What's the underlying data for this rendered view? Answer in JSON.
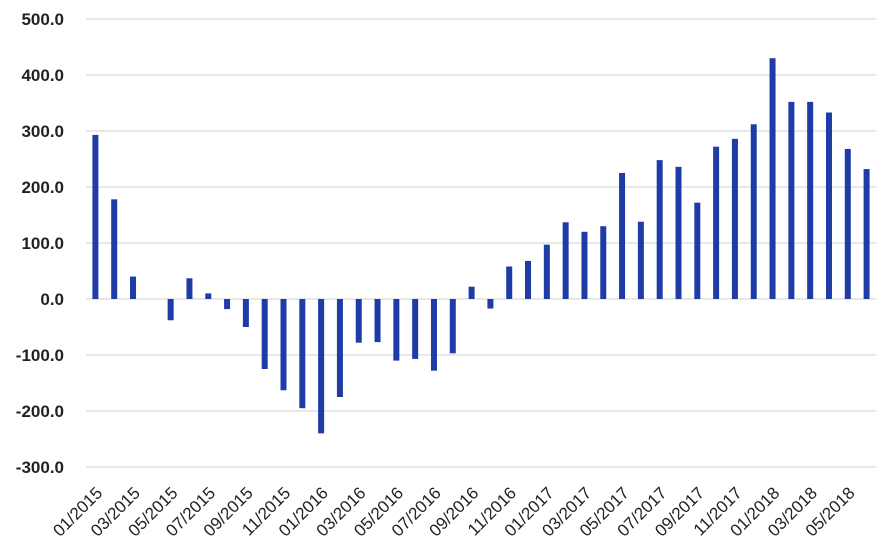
{
  "chart_data": {
    "type": "bar",
    "title": "",
    "xlabel": "",
    "ylabel": "",
    "ylim": [
      -300,
      500
    ],
    "yticks": [
      "-300.0",
      "-200.0",
      "-100.0",
      "0.0",
      "100.0",
      "200.0",
      "300.0",
      "400.0",
      "500.0"
    ],
    "grid": true,
    "legend": "none",
    "bar_color": "#1f3ba6",
    "grid_color": "#d0d0d0",
    "categories": [
      "01/2015",
      "02/2015",
      "03/2015",
      "04/2015",
      "05/2015",
      "06/2015",
      "07/2015",
      "08/2015",
      "09/2015",
      "10/2015",
      "11/2015",
      "12/2015",
      "01/2016",
      "02/2016",
      "03/2016",
      "04/2016",
      "05/2016",
      "06/2016",
      "07/2016",
      "08/2016",
      "09/2016",
      "10/2016",
      "11/2016",
      "12/2016",
      "01/2017",
      "02/2017",
      "03/2017",
      "04/2017",
      "05/2017",
      "06/2017",
      "07/2017",
      "08/2017",
      "09/2017",
      "10/2017",
      "11/2017",
      "12/2017",
      "01/2018",
      "02/2018",
      "03/2018",
      "04/2018",
      "05/2018",
      "06/2018"
    ],
    "xtick_labels": [
      "01/2015",
      "",
      "03/2015",
      "",
      "05/2015",
      "",
      "07/2015",
      "",
      "09/2015",
      "",
      "11/2015",
      "",
      "01/2016",
      "",
      "03/2016",
      "",
      "05/2016",
      "",
      "07/2016",
      "",
      "09/2016",
      "",
      "11/2016",
      "",
      "01/2017",
      "",
      "03/2017",
      "",
      "05/2017",
      "",
      "07/2017",
      "",
      "09/2017",
      "",
      "11/2017",
      "",
      "01/2018",
      "",
      "03/2018",
      "",
      "05/2018",
      ""
    ],
    "values": [
      293,
      178,
      40,
      0,
      -38,
      37,
      10,
      -18,
      -50,
      -125,
      -163,
      -195,
      -240,
      -175,
      -78,
      -77,
      -110,
      -107,
      -128,
      -97,
      22,
      -17,
      58,
      68,
      97,
      137,
      120,
      130,
      225,
      138,
      248,
      236,
      172,
      272,
      286,
      312,
      430,
      352,
      352,
      333,
      268,
      232
    ]
  }
}
